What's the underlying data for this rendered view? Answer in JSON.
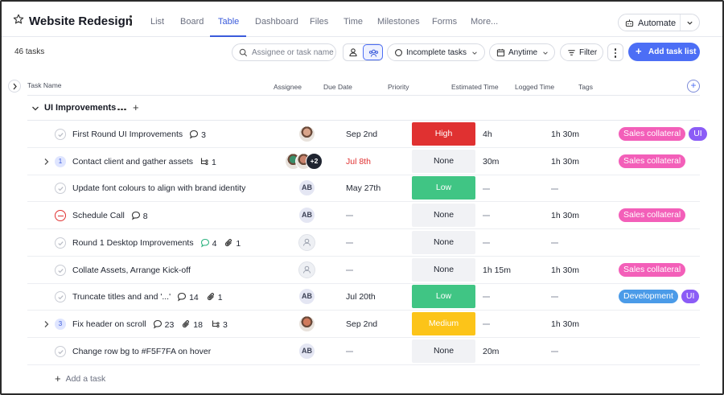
{
  "project": {
    "title": "Website Redesign",
    "tabs": [
      "List",
      "Board",
      "Table",
      "Dashboard",
      "Files",
      "Time",
      "Milestones",
      "Forms",
      "More..."
    ],
    "active_tab": "Table",
    "automate_label": "Automate"
  },
  "toolbar": {
    "task_count": "46 tasks",
    "search_placeholder": "Assignee or task name",
    "status_filter": "Incomplete tasks",
    "date_filter": "Anytime",
    "filter_label": "Filter",
    "add_list_label": "Add task list"
  },
  "columns": {
    "task_name": "Task Name",
    "assignee": "Assignee",
    "due_date": "Due Date",
    "priority": "Priority",
    "estimated": "Estimated Time",
    "logged": "Logged Time",
    "tags": "Tags"
  },
  "group": {
    "name": "UI Improvements"
  },
  "colors": {
    "accent": "#4c6ef5",
    "high": "#e03131",
    "low": "#40c584",
    "medium": "#fcc419",
    "none_bg": "#f1f2f5",
    "tag_sales": "#f35fb9",
    "tag_ui": "#8b5cf6",
    "tag_dev": "#4b9be8",
    "overdue": "#e03131"
  },
  "tasks": [
    {
      "name": "First Round UI Improvements",
      "comments": "3",
      "attachments": "",
      "subtasks": "",
      "subtask_count": "",
      "expandable": false,
      "status": "check",
      "assignees": [
        {
          "type": "photo",
          "tone": "#d9a48a"
        }
      ],
      "due": "Sep 2nd",
      "overdue": false,
      "priority": "High",
      "estimated": "4h",
      "logged": "1h 30m",
      "tags": [
        {
          "label": "Sales collateral",
          "color": "#f35fb9"
        },
        {
          "label": "UI",
          "color": "#8b5cf6"
        }
      ]
    },
    {
      "name": "Contact client and gather assets",
      "comments": "",
      "attachments": "",
      "subtasks": "1",
      "subtask_count": "1",
      "expandable": true,
      "status": "count",
      "assignees": [
        {
          "type": "photo",
          "tone": "#3a8f6a"
        },
        {
          "type": "photo",
          "tone": "#c9846e"
        },
        {
          "type": "more",
          "label": "+2"
        }
      ],
      "due": "Jul 8th",
      "overdue": true,
      "priority": "None",
      "estimated": "30m",
      "logged": "1h 30m",
      "tags": [
        {
          "label": "Sales collateral",
          "color": "#f35fb9"
        }
      ]
    },
    {
      "name": "Update font colours to align with brand identity",
      "comments": "",
      "attachments": "",
      "subtasks": "",
      "subtask_count": "",
      "expandable": false,
      "status": "check",
      "assignees": [
        {
          "type": "initials",
          "label": "AB"
        }
      ],
      "due": "May 27th",
      "overdue": false,
      "priority": "Low",
      "estimated": "",
      "logged": "",
      "tags": []
    },
    {
      "name": "Schedule Call",
      "comments": "8",
      "attachments": "",
      "subtasks": "",
      "subtask_count": "",
      "expandable": false,
      "status": "blocked",
      "assignees": [
        {
          "type": "initials",
          "label": "AB"
        }
      ],
      "due": "",
      "overdue": false,
      "priority": "None",
      "estimated": "",
      "logged": "1h 30m",
      "tags": [
        {
          "label": "Sales collateral",
          "color": "#f35fb9"
        }
      ]
    },
    {
      "name": "Round 1 Desktop Improvements",
      "comments": "4",
      "comments_green": true,
      "attachments": "1",
      "subtasks": "",
      "subtask_count": "",
      "expandable": false,
      "status": "check",
      "assignees": [
        {
          "type": "empty"
        }
      ],
      "due": "",
      "overdue": false,
      "priority": "None",
      "estimated": "",
      "logged": "",
      "tags": []
    },
    {
      "name": "Collate Assets, Arrange Kick-off",
      "comments": "",
      "attachments": "",
      "subtasks": "",
      "subtask_count": "",
      "expandable": false,
      "status": "check",
      "assignees": [
        {
          "type": "empty"
        }
      ],
      "due": "",
      "overdue": false,
      "priority": "None",
      "estimated": "1h 15m",
      "logged": "1h 30m",
      "tags": [
        {
          "label": "Sales collateral",
          "color": "#f35fb9"
        }
      ]
    },
    {
      "name": "Truncate titles and and '...'",
      "comments": "14",
      "attachments": "1",
      "subtasks": "",
      "subtask_count": "",
      "expandable": false,
      "status": "check",
      "assignees": [
        {
          "type": "initials",
          "label": "AB"
        }
      ],
      "due": "Jul 20th",
      "overdue": false,
      "priority": "Low",
      "estimated": "",
      "logged": "",
      "tags": [
        {
          "label": "Development",
          "color": "#4b9be8"
        },
        {
          "label": "UI",
          "color": "#8b5cf6"
        }
      ]
    },
    {
      "name": "Fix header on scroll",
      "comments": "23",
      "attachments": "18",
      "subtasks": "3",
      "subtask_count": "3",
      "expandable": true,
      "status": "count",
      "assignees": [
        {
          "type": "photo",
          "tone": "#d07a5c"
        }
      ],
      "due": "Sep 2nd",
      "overdue": false,
      "priority": "Medium",
      "estimated": "",
      "logged": "1h 30m",
      "tags": []
    },
    {
      "name": "Change row bg to #F5F7FA on hover",
      "comments": "",
      "attachments": "",
      "subtasks": "",
      "subtask_count": "",
      "expandable": false,
      "status": "check",
      "assignees": [
        {
          "type": "initials",
          "label": "AB"
        }
      ],
      "due": "",
      "overdue": false,
      "priority": "None",
      "estimated": "20m",
      "logged": "",
      "tags": []
    }
  ],
  "add_task_label": "Add a task"
}
